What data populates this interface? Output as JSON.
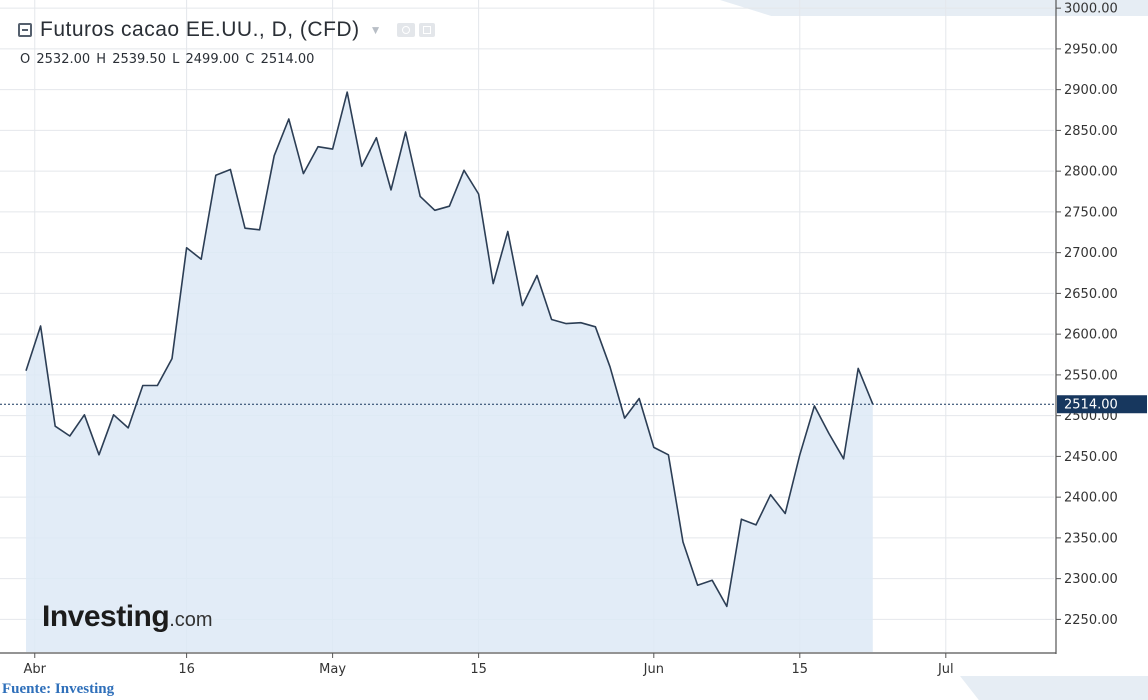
{
  "header": {
    "title": "Futuros cacao EE.UU., D, (CFD)",
    "ohlc": {
      "o_label": "O",
      "o_value": "2532.00",
      "h_label": "H",
      "h_value": "2539.50",
      "l_label": "L",
      "l_value": "2499.00",
      "c_label": "C",
      "c_value": "2514.00"
    }
  },
  "logo": {
    "main": "Investing",
    "suffix": ".com"
  },
  "source_note": "Fuente: Investing",
  "chart_data": {
    "type": "area",
    "title": "Futuros cacao EE.UU., D, (CFD)",
    "xlabel": "",
    "ylabel": "",
    "ylim": [
      2210,
      3010
    ],
    "y_ticks": [
      2250,
      2300,
      2350,
      2400,
      2450,
      2500,
      2550,
      2600,
      2650,
      2700,
      2750,
      2800,
      2850,
      2900,
      2950,
      3000
    ],
    "y_tick_labels": [
      "2250.00",
      "2300.00",
      "2350.00",
      "2400.00",
      "2450.00",
      "2500.00",
      "2550.00",
      "2600.00",
      "2650.00",
      "2700.00",
      "2750.00",
      "2800.00",
      "2850.00",
      "2900.00",
      "2950.00",
      "3000.00"
    ],
    "x_ticks": [
      {
        "label": "Abr",
        "index": 0.6
      },
      {
        "label": "16",
        "index": 11
      },
      {
        "label": "May",
        "index": 21
      },
      {
        "label": "15",
        "index": 31
      },
      {
        "label": "Jun",
        "index": 43
      },
      {
        "label": "15",
        "index": 53
      },
      {
        "label": "Jul",
        "index": 63
      }
    ],
    "x_range": [
      0,
      66
    ],
    "last_value": 2514,
    "last_value_label": "2514.00",
    "grid": true,
    "colors": {
      "line": "#2c3e55",
      "fill": "#dde9f6",
      "grid": "#e4e7eb",
      "price_tag": "#17375e"
    },
    "series": [
      {
        "values": [
          2555,
          2610,
          2487,
          2475,
          2501,
          2452,
          2501,
          2485,
          2537,
          2537,
          2570,
          2706,
          2692,
          2795,
          2802,
          2730,
          2728,
          2819,
          2864,
          2797,
          2830,
          2827,
          2897,
          2806,
          2841,
          2777,
          2848,
          2769,
          2752,
          2757,
          2801,
          2772,
          2662,
          2726,
          2635,
          2672,
          2618,
          2613,
          2614,
          2609,
          2560,
          2497,
          2521,
          2461,
          2452,
          2345,
          2292,
          2298,
          2266,
          2373,
          2366,
          2403,
          2380,
          2452,
          2512,
          2478,
          2447,
          2558,
          2514
        ]
      }
    ]
  }
}
